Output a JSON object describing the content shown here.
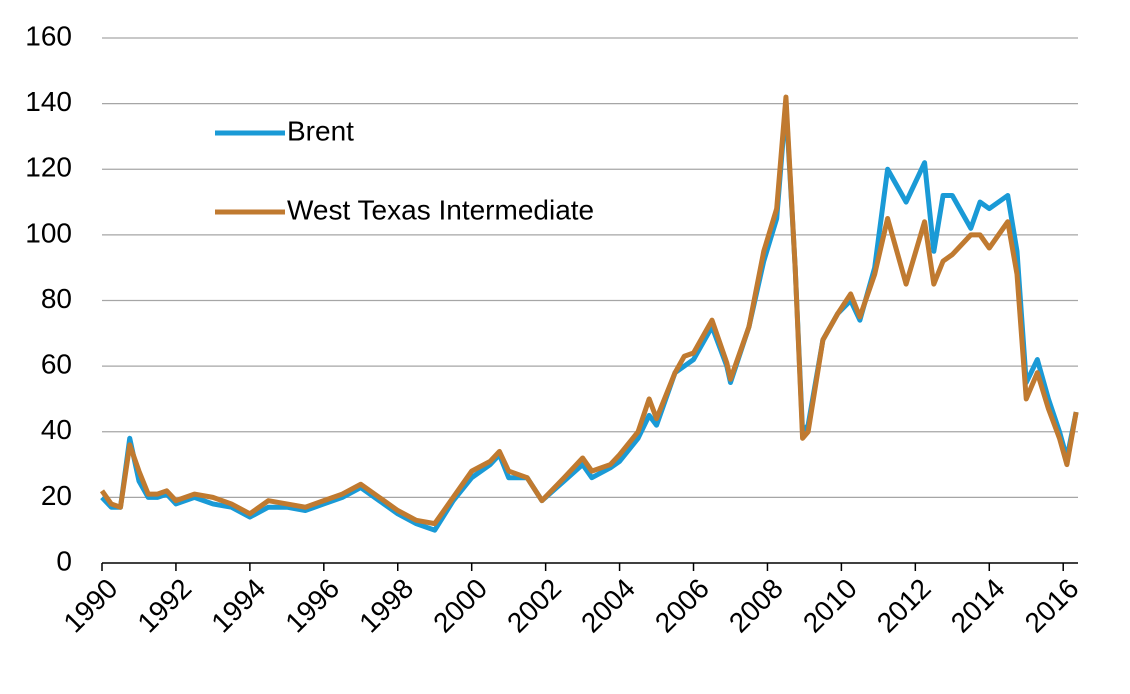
{
  "chart_data": {
    "type": "line",
    "x": [
      1990.0,
      1990.25,
      1990.5,
      1990.75,
      1991.0,
      1991.25,
      1991.5,
      1991.75,
      1992.0,
      1992.5,
      1993.0,
      1993.5,
      1994.0,
      1994.5,
      1995.0,
      1995.5,
      1996.0,
      1996.5,
      1997.0,
      1997.5,
      1998.0,
      1998.5,
      1999.0,
      1999.5,
      2000.0,
      2000.5,
      2000.75,
      2001.0,
      2001.5,
      2001.9,
      2002.5,
      2003.0,
      2003.25,
      2003.75,
      2004.0,
      2004.5,
      2004.8,
      2005.0,
      2005.5,
      2005.75,
      2006.0,
      2006.5,
      2006.9,
      2007.0,
      2007.5,
      2007.9,
      2008.25,
      2008.5,
      2008.75,
      2008.95,
      2009.1,
      2009.5,
      2009.9,
      2010.25,
      2010.5,
      2010.9,
      2011.25,
      2011.5,
      2011.75,
      2012.25,
      2012.5,
      2012.75,
      2013.0,
      2013.5,
      2013.75,
      2014.0,
      2014.5,
      2014.75,
      2015.0,
      2015.3,
      2015.6,
      2015.9,
      2016.1,
      2016.35
    ],
    "series": [
      {
        "name": "Brent",
        "color": "#1a9ad6",
        "values": [
          20,
          17,
          17,
          38,
          25,
          20,
          20,
          21,
          18,
          20,
          18,
          17,
          14,
          17,
          17,
          16,
          18,
          20,
          23,
          19,
          15,
          12,
          10,
          19,
          26,
          30,
          33,
          26,
          26,
          19,
          25,
          30,
          26,
          29,
          31,
          38,
          45,
          42,
          58,
          60,
          62,
          72,
          60,
          55,
          72,
          92,
          105,
          140,
          90,
          40,
          42,
          68,
          76,
          80,
          74,
          90,
          120,
          115,
          110,
          122,
          95,
          112,
          112,
          102,
          110,
          108,
          112,
          95,
          55,
          62,
          50,
          40,
          32,
          46
        ]
      },
      {
        "name": "West Texas Intermediate",
        "color": "#c07a30",
        "values": [
          22,
          18,
          17,
          36,
          28,
          21,
          21,
          22,
          19,
          21,
          20,
          18,
          15,
          19,
          18,
          17,
          19,
          21,
          24,
          20,
          16,
          13,
          12,
          20,
          28,
          31,
          34,
          28,
          26,
          19,
          26,
          32,
          28,
          30,
          33,
          40,
          50,
          44,
          58,
          63,
          64,
          74,
          61,
          56,
          72,
          95,
          108,
          142,
          90,
          38,
          40,
          68,
          76,
          82,
          75,
          88,
          105,
          95,
          85,
          104,
          85,
          92,
          94,
          100,
          100,
          96,
          104,
          88,
          50,
          58,
          47,
          38,
          30,
          46
        ]
      }
    ],
    "xlim": [
      1990,
      2016.4
    ],
    "xticks": [
      1990,
      1992,
      1994,
      1996,
      1998,
      2000,
      2002,
      2004,
      2006,
      2008,
      2010,
      2012,
      2014,
      2016
    ],
    "ylim": [
      0,
      160
    ],
    "yticks": [
      0,
      20,
      40,
      60,
      80,
      100,
      120,
      140,
      160
    ],
    "grid": true,
    "legend": "upper left"
  }
}
